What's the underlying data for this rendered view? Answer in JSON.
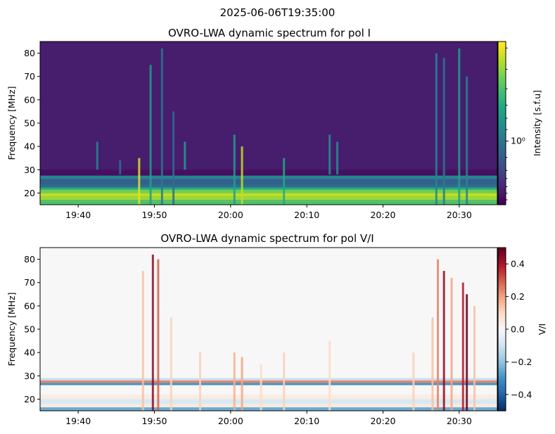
{
  "figure": {
    "suptitle": "2025-06-06T19:35:00"
  },
  "chart_data": [
    {
      "type": "heatmap",
      "title": "OVRO-LWA dynamic spectrum for pol I",
      "xlabel": "",
      "ylabel": "Frequency [MHz]",
      "colorbar_label": "Intensity [s.f.u]",
      "colorbar_scale": "log",
      "colorbar_ticks": [
        "10⁰"
      ],
      "colormap": "viridis",
      "colormap_colors": [
        "#440154",
        "#482475",
        "#414487",
        "#355f8d",
        "#2a788e",
        "#21918c",
        "#22a884",
        "#44bf70",
        "#7ad151",
        "#bddf26",
        "#fde725"
      ],
      "x_time_range": [
        "19:35",
        "20:35"
      ],
      "x_tick_labels": [
        "19:40",
        "19:50",
        "20:00",
        "20:10",
        "20:20",
        "20:30"
      ],
      "x_tick_minutes": [
        5,
        15,
        25,
        35,
        45,
        55
      ],
      "ylim": [
        15,
        85
      ],
      "y_ticks": [
        20,
        30,
        40,
        50,
        60,
        70,
        80
      ],
      "background_level": 0.08,
      "bands": [
        {
          "freq": [
            15,
            17
          ],
          "level": 0.72
        },
        {
          "freq": [
            17,
            18.5
          ],
          "level": 0.85
        },
        {
          "freq": [
            18.5,
            20
          ],
          "level": 0.9
        },
        {
          "freq": [
            20,
            21.5
          ],
          "level": 0.78
        },
        {
          "freq": [
            21.5,
            22.5
          ],
          "level": 0.6
        },
        {
          "freq": [
            22.5,
            24
          ],
          "level": 0.35
        },
        {
          "freq": [
            24,
            26
          ],
          "level": 0.3
        },
        {
          "freq": [
            26,
            27.5
          ],
          "level": 0.45
        },
        {
          "freq": [
            27.5,
            30
          ],
          "level": 0.04
        },
        {
          "freq": [
            30,
            32
          ],
          "level": 0.08
        }
      ],
      "bursts": [
        {
          "minute": 13,
          "f_low": 15,
          "f_high": 35,
          "level": 0.95
        },
        {
          "minute": 14.5,
          "f_low": 15,
          "f_high": 75,
          "level": 0.55
        },
        {
          "minute": 16,
          "f_low": 15,
          "f_high": 82,
          "level": 0.4
        },
        {
          "minute": 17.5,
          "f_low": 15,
          "f_high": 55,
          "level": 0.35
        },
        {
          "minute": 19,
          "f_low": 30,
          "f_high": 42,
          "level": 0.55
        },
        {
          "minute": 25.5,
          "f_low": 15,
          "f_high": 45,
          "level": 0.55
        },
        {
          "minute": 26.5,
          "f_low": 15,
          "f_high": 40,
          "level": 0.9
        },
        {
          "minute": 32,
          "f_low": 15,
          "f_high": 35,
          "level": 0.6
        },
        {
          "minute": 7.5,
          "f_low": 30,
          "f_high": 42,
          "level": 0.45
        },
        {
          "minute": 10.5,
          "f_low": 28,
          "f_high": 34,
          "level": 0.35
        },
        {
          "minute": 38,
          "f_low": 28,
          "f_high": 45,
          "level": 0.5
        },
        {
          "minute": 39,
          "f_low": 28,
          "f_high": 42,
          "level": 0.5
        },
        {
          "minute": 52,
          "f_low": 15,
          "f_high": 80,
          "level": 0.45
        },
        {
          "minute": 53,
          "f_low": 15,
          "f_high": 78,
          "level": 0.4
        },
        {
          "minute": 55,
          "f_low": 15,
          "f_high": 82,
          "level": 0.55
        },
        {
          "minute": 56,
          "f_low": 15,
          "f_high": 70,
          "level": 0.45
        }
      ]
    },
    {
      "type": "heatmap",
      "title": "OVRO-LWA dynamic spectrum for pol V/I",
      "xlabel": "",
      "ylabel": "Frequency [MHz]",
      "colorbar_label": "V/I",
      "colormap": "RdBu_r",
      "colormap_colors": [
        "#053061",
        "#2166ac",
        "#4393c3",
        "#92c5de",
        "#d1e5f0",
        "#f7f7f7",
        "#fddbc7",
        "#f4a582",
        "#d6604d",
        "#b2182b",
        "#67001f"
      ],
      "clim": [
        -0.5,
        0.5
      ],
      "colorbar_ticks": [
        -0.4,
        -0.2,
        0.0,
        0.2,
        0.4
      ],
      "colorbar_tick_labels": [
        "−0.4",
        "−0.2",
        "0.0",
        "0.2",
        "0.4"
      ],
      "x_time_range": [
        "19:35",
        "20:35"
      ],
      "x_tick_labels": [
        "19:40",
        "19:50",
        "20:00",
        "20:10",
        "20:20",
        "20:30"
      ],
      "x_tick_minutes": [
        5,
        15,
        25,
        35,
        45,
        55
      ],
      "ylim": [
        15,
        85
      ],
      "y_ticks": [
        20,
        30,
        40,
        50,
        60,
        70,
        80
      ],
      "background_value": 0.0,
      "bands": [
        {
          "freq": [
            15,
            16.5
          ],
          "value": -0.25
        },
        {
          "freq": [
            16.5,
            18
          ],
          "value": 0.05
        },
        {
          "freq": [
            18,
            20
          ],
          "value": -0.08
        },
        {
          "freq": [
            20,
            22
          ],
          "value": 0.04
        },
        {
          "freq": [
            26,
            27
          ],
          "value": -0.3
        },
        {
          "freq": [
            27,
            28
          ],
          "value": 0.25
        },
        {
          "freq": [
            28,
            29
          ],
          "value": -0.12
        }
      ],
      "bursts": [
        {
          "minute": 13.5,
          "f_low": 15,
          "f_high": 75,
          "value": 0.15
        },
        {
          "minute": 14.8,
          "f_low": 15,
          "f_high": 82,
          "value": 0.45
        },
        {
          "minute": 15.5,
          "f_low": 15,
          "f_high": 80,
          "value": 0.3
        },
        {
          "minute": 17.2,
          "f_low": 15,
          "f_high": 55,
          "value": 0.12
        },
        {
          "minute": 21,
          "f_low": 15,
          "f_high": 40,
          "value": 0.12
        },
        {
          "minute": 25.5,
          "f_low": 15,
          "f_high": 40,
          "value": 0.18
        },
        {
          "minute": 26.5,
          "f_low": 15,
          "f_high": 38,
          "value": 0.2
        },
        {
          "minute": 29,
          "f_low": 15,
          "f_high": 35,
          "value": 0.1
        },
        {
          "minute": 32,
          "f_low": 15,
          "f_high": 40,
          "value": 0.12
        },
        {
          "minute": 38,
          "f_low": 15,
          "f_high": 45,
          "value": 0.1
        },
        {
          "minute": 49,
          "f_low": 15,
          "f_high": 40,
          "value": 0.12
        },
        {
          "minute": 51.5,
          "f_low": 15,
          "f_high": 55,
          "value": 0.15
        },
        {
          "minute": 52.2,
          "f_low": 15,
          "f_high": 80,
          "value": 0.25
        },
        {
          "minute": 53,
          "f_low": 15,
          "f_high": 75,
          "value": 0.45
        },
        {
          "minute": 54,
          "f_low": 15,
          "f_high": 72,
          "value": 0.2
        },
        {
          "minute": 55.5,
          "f_low": 15,
          "f_high": 70,
          "value": 0.4
        },
        {
          "minute": 56,
          "f_low": 15,
          "f_high": 65,
          "value": 0.5
        },
        {
          "minute": 57,
          "f_low": 15,
          "f_high": 60,
          "value": 0.15
        }
      ]
    }
  ]
}
